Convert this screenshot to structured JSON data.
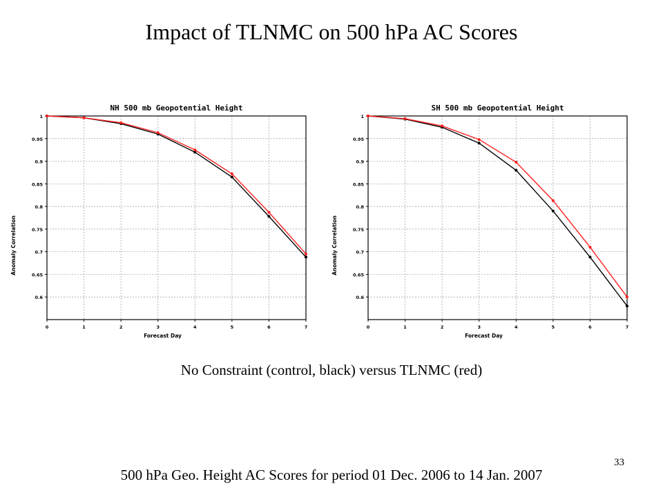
{
  "slide": {
    "title": "Impact of TLNMC on 500 hPa AC Scores",
    "caption": "No Constraint (control, black) versus TLNMC (red)",
    "footer": "500 hPa Geo. Height AC Scores for period 01 Dec. 2006 to 14 Jan. 2007",
    "slide_number": "33"
  },
  "chart_data": [
    {
      "type": "line",
      "title": "NH 500 mb Geopotential Height",
      "xlabel": "Forecast Day",
      "ylabel": "Anomaly Correlation",
      "x": [
        0,
        1,
        2,
        3,
        4,
        5,
        6,
        7
      ],
      "xlim": [
        0,
        7
      ],
      "ylim": [
        0.55,
        1.0
      ],
      "xticks": [
        "0",
        "1",
        "2",
        "3",
        "4",
        "5",
        "6",
        "7"
      ],
      "yticks": [
        "0.6",
        "0.65",
        "0.7",
        "0.75",
        "0.8",
        "0.85",
        "0.9",
        "0.95",
        "1"
      ],
      "grid": true,
      "series": [
        {
          "color": "#000000",
          "values": [
            1.0,
            0.996,
            0.983,
            0.96,
            0.92,
            0.865,
            0.778,
            0.688
          ]
        },
        {
          "color": "#ff2020",
          "values": [
            1.0,
            0.996,
            0.985,
            0.963,
            0.925,
            0.872,
            0.787,
            0.695
          ]
        }
      ]
    },
    {
      "type": "line",
      "title": "SH 500 mb Geopotential Height",
      "xlabel": "Forecast Day",
      "ylabel": "Anomaly Correlation",
      "x": [
        0,
        1,
        2,
        3,
        4,
        5,
        6,
        7
      ],
      "xlim": [
        0,
        7
      ],
      "ylim": [
        0.55,
        1.0
      ],
      "xticks": [
        "0",
        "1",
        "2",
        "3",
        "4",
        "5",
        "6",
        "7"
      ],
      "yticks": [
        "0.6",
        "0.65",
        "0.7",
        "0.75",
        "0.8",
        "0.85",
        "0.9",
        "0.95",
        "1"
      ],
      "grid": true,
      "series": [
        {
          "color": "#000000",
          "values": [
            1.0,
            0.993,
            0.975,
            0.94,
            0.88,
            0.79,
            0.688,
            0.58
          ]
        },
        {
          "color": "#ff2020",
          "values": [
            1.0,
            0.994,
            0.978,
            0.948,
            0.898,
            0.813,
            0.71,
            0.6
          ]
        }
      ]
    }
  ]
}
